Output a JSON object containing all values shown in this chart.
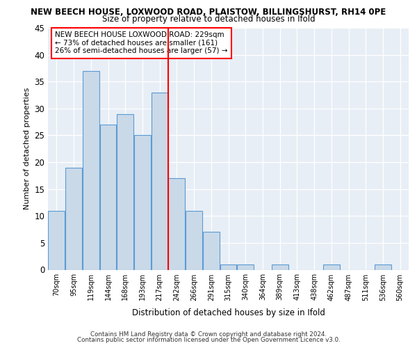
{
  "title_line1": "NEW BEECH HOUSE, LOXWOOD ROAD, PLAISTOW, BILLINGSHURST, RH14 0PE",
  "title_line2": "Size of property relative to detached houses in Ifold",
  "xlabel": "Distribution of detached houses by size in Ifold",
  "ylabel": "Number of detached properties",
  "categories": [
    "70sqm",
    "95sqm",
    "119sqm",
    "144sqm",
    "168sqm",
    "193sqm",
    "217sqm",
    "242sqm",
    "266sqm",
    "291sqm",
    "315sqm",
    "340sqm",
    "364sqm",
    "389sqm",
    "413sqm",
    "438sqm",
    "462sqm",
    "487sqm",
    "511sqm",
    "536sqm",
    "560sqm"
  ],
  "values": [
    11,
    19,
    37,
    27,
    29,
    25,
    33,
    17,
    11,
    7,
    1,
    1,
    0,
    1,
    0,
    0,
    1,
    0,
    0,
    1,
    0
  ],
  "bar_color": "#c9d9e8",
  "bar_edge_color": "#5b9bd5",
  "red_line_x": 6.5,
  "annotation_line1": "NEW BEECH HOUSE LOXWOOD ROAD: 229sqm",
  "annotation_line2": "← 73% of detached houses are smaller (161)",
  "annotation_line3": "26% of semi-detached houses are larger (57) →",
  "ylim": [
    0,
    45
  ],
  "yticks": [
    0,
    5,
    10,
    15,
    20,
    25,
    30,
    35,
    40,
    45
  ],
  "footer_line1": "Contains HM Land Registry data © Crown copyright and database right 2024.",
  "footer_line2": "Contains public sector information licensed under the Open Government Licence v3.0.",
  "plot_background": "#e8eef5"
}
